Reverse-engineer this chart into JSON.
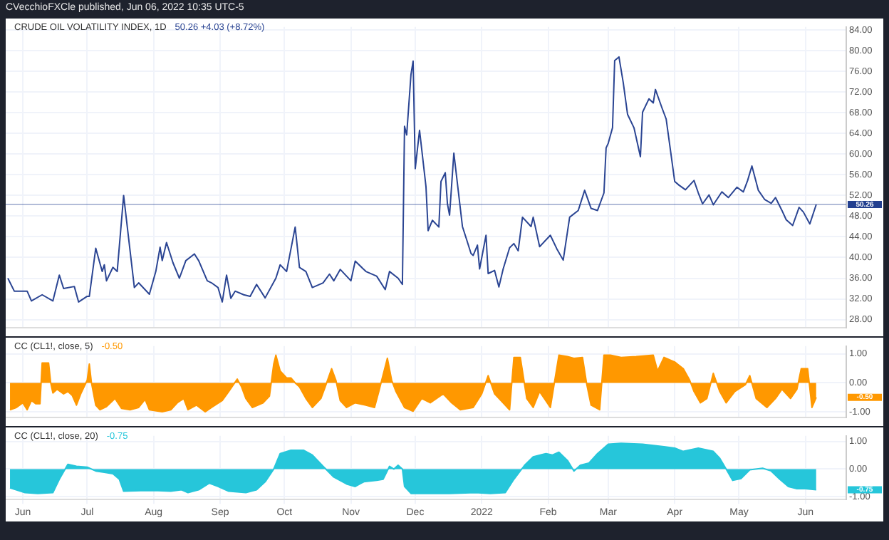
{
  "chart_data": [
    {
      "type": "line",
      "title": "CRUDE OIL VOLATILITY INDEX, 1D",
      "subtitle": "50.26 +4.03 (+8.72%)",
      "annotations": [
        "CVecchioFXCle published, Jun 06, 2022 10:35 UTC-5"
      ],
      "series": [
        {
          "color": "#2b4593",
          "x": [
            "2021-05-25",
            "2021-05-28",
            "2021-06-03",
            "2021-06-05",
            "2021-06-10",
            "2021-06-15",
            "2021-06-18",
            "2021-06-20",
            "2021-06-25",
            "2021-06-27",
            "2021-07-01",
            "2021-07-02",
            "2021-07-05",
            "2021-07-08",
            "2021-07-09",
            "2021-07-10",
            "2021-07-13",
            "2021-07-15",
            "2021-07-18",
            "2021-07-23",
            "2021-07-25",
            "2021-07-30",
            "2021-08-02",
            "2021-08-04",
            "2021-08-05",
            "2021-08-07",
            "2021-08-10",
            "2021-08-13",
            "2021-08-16",
            "2021-08-20",
            "2021-08-22",
            "2021-08-26",
            "2021-08-28",
            "2021-08-31",
            "2021-09-02",
            "2021-09-04",
            "2021-09-06",
            "2021-09-08",
            "2021-09-12",
            "2021-09-15",
            "2021-09-18",
            "2021-09-22",
            "2021-09-27",
            "2021-09-29",
            "2021-10-02",
            "2021-10-06",
            "2021-10-08",
            "2021-10-11",
            "2021-10-14",
            "2021-10-19",
            "2021-10-22",
            "2021-10-24",
            "2021-10-27",
            "2021-11-01",
            "2021-11-03",
            "2021-11-08",
            "2021-11-13",
            "2021-11-17",
            "2021-11-19",
            "2021-11-23",
            "2021-11-25",
            "2021-11-26",
            "2021-11-27",
            "2021-11-29",
            "2021-11-30",
            "2021-12-01",
            "2021-12-03",
            "2021-12-06",
            "2021-12-07",
            "2021-12-09",
            "2021-12-12",
            "2021-12-13",
            "2021-12-15",
            "2021-12-16",
            "2021-12-17",
            "2021-12-19",
            "2021-12-23",
            "2021-12-25",
            "2021-12-27",
            "2021-12-28",
            "2021-12-30",
            "2021-12-31",
            "2022-01-03",
            "2022-01-04",
            "2022-01-07",
            "2022-01-09",
            "2022-01-11",
            "2022-01-14",
            "2022-01-16",
            "2022-01-18",
            "2022-01-20",
            "2022-01-24",
            "2022-01-25",
            "2022-01-28",
            "2022-02-02",
            "2022-02-05",
            "2022-02-08",
            "2022-02-11",
            "2022-02-15",
            "2022-02-18",
            "2022-02-21",
            "2022-02-24",
            "2022-02-27",
            "2022-02-28",
            "2022-03-01",
            "2022-03-03",
            "2022-03-04",
            "2022-03-06",
            "2022-03-08",
            "2022-03-10",
            "2022-03-13",
            "2022-03-16",
            "2022-03-17",
            "2022-03-20",
            "2022-03-22",
            "2022-03-23",
            "2022-03-26",
            "2022-03-28",
            "2022-03-30",
            "2022-04-01",
            "2022-04-03",
            "2022-04-06",
            "2022-04-10",
            "2022-04-12",
            "2022-04-14",
            "2022-04-17",
            "2022-04-19",
            "2022-04-23",
            "2022-04-26",
            "2022-04-30",
            "2022-05-03",
            "2022-05-05",
            "2022-05-07",
            "2022-05-10",
            "2022-05-13",
            "2022-05-16",
            "2022-05-18",
            "2022-05-21",
            "2022-05-23",
            "2022-05-26",
            "2022-05-29",
            "2022-05-31",
            "2022-06-03",
            "2022-06-06"
          ],
          "values": [
            36.0,
            33.5,
            33.5,
            31.6,
            32.8,
            31.6,
            36.6,
            34.0,
            34.4,
            31.4,
            32.5,
            32.5,
            41.8,
            37.3,
            38.6,
            35.5,
            38.1,
            37.3,
            52.0,
            34.2,
            35.1,
            32.9,
            37.3,
            42.0,
            39.4,
            42.9,
            39.0,
            36.0,
            39.4,
            40.7,
            39.4,
            35.5,
            35.1,
            34.2,
            31.4,
            36.6,
            32.1,
            33.5,
            32.8,
            32.5,
            34.8,
            32.2,
            36.0,
            38.6,
            37.3,
            45.9,
            38.1,
            37.3,
            34.2,
            35.1,
            36.8,
            35.5,
            37.7,
            35.5,
            39.3,
            37.3,
            36.4,
            33.8,
            37.3,
            36.0,
            34.8,
            65.4,
            63.7,
            75.4,
            78.0,
            57.2,
            64.6,
            53.7,
            45.2,
            47.2,
            45.9,
            54.7,
            56.4,
            50.4,
            48.2,
            60.2,
            46.0,
            43.4,
            40.8,
            40.4,
            42.4,
            37.8,
            44.3,
            36.9,
            37.5,
            34.3,
            37.8,
            41.9,
            42.7,
            41.3,
            47.8,
            46.0,
            47.8,
            42.1,
            44.3,
            41.7,
            39.5,
            47.8,
            49.1,
            53.0,
            49.5,
            49.1,
            52.5,
            61.2,
            62.1,
            65.1,
            78.1,
            78.8,
            73.8,
            67.7,
            65.1,
            59.5,
            68.1,
            70.7,
            69.9,
            72.5,
            69.0,
            66.8,
            60.8,
            54.7,
            54.0,
            53.1,
            54.9,
            52.5,
            50.4,
            52.1,
            50.2,
            52.7,
            51.6,
            53.6,
            52.7,
            54.9,
            57.7,
            53.0,
            51.2,
            50.5,
            51.6,
            49.1,
            47.3,
            46.2,
            49.7,
            48.8,
            46.5,
            50.26
          ]
        }
      ],
      "ref_lines": [
        {
          "axis": "y",
          "value": 50.26,
          "label": "50.26",
          "color": "#223f8f"
        }
      ],
      "xlim": [
        "2021-05-24",
        "2022-06-20"
      ],
      "xticks": [
        {
          "value": "2021-06-01",
          "label": null
        },
        {
          "value": "2021-07-01",
          "label": null
        },
        {
          "value": "2021-08-01",
          "label": null
        },
        {
          "value": "2021-09-01",
          "label": null
        },
        {
          "value": "2021-10-01",
          "label": null
        },
        {
          "value": "2021-11-01",
          "label": null
        },
        {
          "value": "2021-12-01",
          "label": null
        },
        {
          "value": "2022-01-01",
          "label": null
        },
        {
          "value": "2022-02-01",
          "label": null
        },
        {
          "value": "2022-03-01",
          "label": null
        },
        {
          "value": "2022-04-01",
          "label": null
        },
        {
          "value": "2022-05-01",
          "label": null
        },
        {
          "value": "2022-06-01",
          "label": null
        }
      ],
      "ylim": [
        26.4,
        84.6
      ],
      "yticks": [
        {
          "value": 28,
          "label": "28.00"
        },
        {
          "value": 32,
          "label": "32.00"
        },
        {
          "value": 36,
          "label": "36.00"
        },
        {
          "value": 40,
          "label": "40.00"
        },
        {
          "value": 44,
          "label": "44.00"
        },
        {
          "value": 48,
          "label": "48.00"
        },
        {
          "value": 52,
          "label": "52.00"
        },
        {
          "value": 56,
          "label": "56.00"
        },
        {
          "value": 60,
          "label": "60.00"
        },
        {
          "value": 64,
          "label": "64.00"
        },
        {
          "value": 68,
          "label": "68.00"
        },
        {
          "value": 72,
          "label": "72.00"
        },
        {
          "value": 76,
          "label": "76.00"
        },
        {
          "value": 80,
          "label": "80.00"
        },
        {
          "value": 84,
          "label": "84.00"
        }
      ],
      "grid": true,
      "tick_labels": "y"
    },
    {
      "type": "area",
      "title": "CC (CL1!, close, 5)",
      "subtitle": "-0.50",
      "annotations": [
        "-0.50"
      ],
      "series": [
        {
          "color": "#ff9800",
          "x": [
            "2021-05-26",
            "2021-05-29",
            "2021-06-01",
            "2021-06-03",
            "2021-06-05",
            "2021-06-07",
            "2021-06-09",
            "2021-06-10",
            "2021-06-13",
            "2021-06-14",
            "2021-06-15",
            "2021-06-17",
            "2021-06-20",
            "2021-06-22",
            "2021-06-24",
            "2021-06-26",
            "2021-06-28",
            "2021-07-01",
            "2021-07-02",
            "2021-07-03",
            "2021-07-05",
            "2021-07-07",
            "2021-07-10",
            "2021-07-14",
            "2021-07-17",
            "2021-07-21",
            "2021-07-25",
            "2021-07-28",
            "2021-07-30",
            "2021-08-05",
            "2021-08-09",
            "2021-08-12",
            "2021-08-15",
            "2021-08-17",
            "2021-08-21",
            "2021-08-25",
            "2021-08-28",
            "2021-09-02",
            "2021-09-05",
            "2021-09-09",
            "2021-09-11",
            "2021-09-13",
            "2021-09-16",
            "2021-09-21",
            "2021-09-24",
            "2021-09-26",
            "2021-09-27",
            "2021-09-29",
            "2021-10-02",
            "2021-10-04",
            "2021-10-06",
            "2021-10-08",
            "2021-10-11",
            "2021-10-14",
            "2021-10-18",
            "2021-10-20",
            "2021-10-23",
            "2021-10-25",
            "2021-10-27",
            "2021-10-30",
            "2021-11-03",
            "2021-11-08",
            "2021-11-12",
            "2021-11-14",
            "2021-11-18",
            "2021-11-20",
            "2021-11-22",
            "2021-11-26",
            "2021-11-30",
            "2021-12-04",
            "2021-12-08",
            "2021-12-14",
            "2021-12-18",
            "2021-12-22",
            "2021-12-28",
            "2022-01-01",
            "2022-01-04",
            "2022-01-07",
            "2022-01-11",
            "2022-01-14",
            "2022-01-16",
            "2022-01-19",
            "2022-01-22",
            "2022-01-25",
            "2022-01-28",
            "2022-02-02",
            "2022-02-06",
            "2022-02-10",
            "2022-02-13",
            "2022-02-17",
            "2022-02-19",
            "2022-02-21",
            "2022-02-25",
            "2022-02-27",
            "2022-03-02",
            "2022-03-07",
            "2022-03-14",
            "2022-03-22",
            "2022-03-24",
            "2022-03-27",
            "2022-04-01",
            "2022-04-05",
            "2022-04-08",
            "2022-04-10",
            "2022-04-13",
            "2022-04-16",
            "2022-04-19",
            "2022-04-22",
            "2022-04-25",
            "2022-04-29",
            "2022-05-04",
            "2022-05-06",
            "2022-05-09",
            "2022-05-14",
            "2022-05-18",
            "2022-05-21",
            "2022-05-25",
            "2022-05-28",
            "2022-05-30",
            "2022-06-02",
            "2022-06-04",
            "2022-06-06"
          ],
          "values": [
            -0.93,
            -0.85,
            -0.69,
            -0.93,
            -0.61,
            -0.72,
            -0.72,
            0.69,
            0.69,
            0,
            -0.35,
            -0.22,
            -0.38,
            -0.3,
            -0.43,
            -0.77,
            -0.38,
            0.09,
            0.65,
            0,
            -0.77,
            -0.93,
            -0.82,
            -0.54,
            -0.88,
            -0.93,
            -0.85,
            -0.57,
            -0.93,
            -1.0,
            -0.93,
            -0.69,
            -0.54,
            -0.93,
            -0.77,
            -1.0,
            -0.85,
            -0.61,
            -0.3,
            0.13,
            -0.14,
            -0.54,
            -0.85,
            -0.69,
            -0.46,
            0.65,
            0.96,
            0.41,
            0.17,
            0.17,
            0,
            -0.14,
            -0.54,
            -0.85,
            -0.54,
            -0.14,
            0.49,
            0.09,
            -0.61,
            -0.85,
            -0.69,
            -0.77,
            -0.85,
            -0.3,
            0.85,
            0.09,
            -0.3,
            -0.85,
            -0.98,
            -0.54,
            -0.69,
            -0.38,
            -0.69,
            -0.93,
            -0.85,
            -0.38,
            0.25,
            -0.38,
            -0.69,
            -0.93,
            0.88,
            0.88,
            -0.54,
            -0.85,
            -0.3,
            -0.85,
            0.96,
            0.91,
            0.85,
            0.88,
            -0.06,
            -0.77,
            -0.93,
            0.96,
            0.96,
            0.88,
            0.91,
            0.96,
            0.41,
            0.88,
            0.72,
            0.49,
            0.09,
            -0.3,
            -0.69,
            -0.54,
            0.33,
            -0.3,
            -0.69,
            -0.3,
            -0.06,
            0.25,
            -0.54,
            -0.85,
            -0.54,
            -0.22,
            -0.54,
            -0.22,
            0.49,
            0.49,
            -0.85,
            -0.5
          ]
        }
      ],
      "xlim": [
        "2021-05-24",
        "2022-06-20"
      ],
      "xticks": [
        {
          "value": "2021-06-01",
          "label": null
        },
        {
          "value": "2021-07-01",
          "label": null
        },
        {
          "value": "2021-08-01",
          "label": null
        },
        {
          "value": "2021-09-01",
          "label": null
        },
        {
          "value": "2021-10-01",
          "label": null
        },
        {
          "value": "2021-11-01",
          "label": null
        },
        {
          "value": "2021-12-01",
          "label": null
        },
        {
          "value": "2022-01-01",
          "label": null
        },
        {
          "value": "2022-02-01",
          "label": null
        },
        {
          "value": "2022-03-01",
          "label": null
        },
        {
          "value": "2022-04-01",
          "label": null
        },
        {
          "value": "2022-05-01",
          "label": null
        },
        {
          "value": "2022-06-01",
          "label": null
        }
      ],
      "ylim": [
        -1.2,
        1.27
      ],
      "yticks": [
        {
          "value": -1,
          "label": "-1.00"
        },
        {
          "value": 0,
          "label": "0.00"
        },
        {
          "value": 1,
          "label": "1.00"
        }
      ],
      "grid": true,
      "tick_labels": "y"
    },
    {
      "type": "area",
      "title": "CC (CL1!, close, 20)",
      "subtitle": "-0.75",
      "annotations": [
        "-0.75"
      ],
      "series": [
        {
          "color": "#26c6da",
          "x": [
            "2021-05-26",
            "2021-06-02",
            "2021-06-08",
            "2021-06-15",
            "2021-06-18",
            "2021-06-22",
            "2021-06-26",
            "2021-07-01",
            "2021-07-05",
            "2021-07-09",
            "2021-07-13",
            "2021-07-16",
            "2021-07-18",
            "2021-07-26",
            "2021-08-03",
            "2021-08-09",
            "2021-08-14",
            "2021-08-17",
            "2021-08-22",
            "2021-08-27",
            "2021-08-31",
            "2021-09-05",
            "2021-09-13",
            "2021-09-18",
            "2021-09-22",
            "2021-09-26",
            "2021-09-29",
            "2021-10-04",
            "2021-10-10",
            "2021-10-14",
            "2021-10-19",
            "2021-10-24",
            "2021-10-30",
            "2021-11-03",
            "2021-11-07",
            "2021-11-13",
            "2021-11-16",
            "2021-11-19",
            "2021-11-21",
            "2021-11-23",
            "2021-11-25",
            "2021-11-26",
            "2021-11-29",
            "2021-12-07",
            "2021-12-17",
            "2021-12-29",
            "2022-01-05",
            "2022-01-12",
            "2022-01-16",
            "2022-01-21",
            "2022-01-25",
            "2022-01-31",
            "2022-02-03",
            "2022-02-06",
            "2022-02-10",
            "2022-02-13",
            "2022-02-16",
            "2022-02-20",
            "2022-02-24",
            "2022-03-01",
            "2022-03-07",
            "2022-03-17",
            "2022-03-27",
            "2022-04-01",
            "2022-04-05",
            "2022-04-12",
            "2022-04-19",
            "2022-04-22",
            "2022-04-25",
            "2022-04-28",
            "2022-05-02",
            "2022-05-06",
            "2022-05-12",
            "2022-05-16",
            "2022-05-20",
            "2022-05-24",
            "2022-05-28",
            "2022-06-01",
            "2022-06-06"
          ],
          "values": [
            -0.68,
            -0.85,
            -0.88,
            -0.85,
            -0.37,
            0.17,
            0.1,
            0.07,
            -0.07,
            -0.12,
            -0.17,
            -0.37,
            -0.8,
            -0.78,
            -0.78,
            -0.8,
            -0.75,
            -0.85,
            -0.75,
            -0.51,
            -0.63,
            -0.8,
            -0.85,
            -0.75,
            -0.46,
            0,
            0.56,
            0.68,
            0.68,
            0.51,
            0.1,
            -0.29,
            -0.54,
            -0.63,
            -0.46,
            -0.41,
            -0.37,
            0.1,
            0,
            0.14,
            0,
            -0.63,
            -0.88,
            -0.88,
            -0.88,
            -0.85,
            -0.88,
            -0.85,
            -0.37,
            0.14,
            0.44,
            0.56,
            0.51,
            0.61,
            0.31,
            -0.07,
            0.14,
            0.22,
            0.56,
            0.9,
            0.93,
            0.9,
            0.81,
            0.76,
            0.64,
            0.76,
            0.64,
            0.39,
            0,
            -0.41,
            -0.34,
            -0.03,
            0.03,
            -0.07,
            -0.37,
            -0.63,
            -0.71,
            -0.71,
            -0.75
          ]
        }
      ],
      "xlim": [
        "2021-05-24",
        "2022-06-20"
      ],
      "xticks": [
        {
          "value": "2021-06-01",
          "label": "Jun"
        },
        {
          "value": "2021-07-01",
          "label": "Jul"
        },
        {
          "value": "2021-08-01",
          "label": "Aug"
        },
        {
          "value": "2021-09-01",
          "label": "Sep"
        },
        {
          "value": "2021-10-01",
          "label": "Oct"
        },
        {
          "value": "2021-11-01",
          "label": "Nov"
        },
        {
          "value": "2021-12-01",
          "label": "Dec"
        },
        {
          "value": "2022-01-01",
          "label": "2022"
        },
        {
          "value": "2022-02-01",
          "label": "Feb"
        },
        {
          "value": "2022-03-01",
          "label": "Mar"
        },
        {
          "value": "2022-04-01",
          "label": "Apr"
        },
        {
          "value": "2022-05-01",
          "label": "May"
        },
        {
          "value": "2022-06-01",
          "label": "Jun"
        }
      ],
      "ylim": [
        -1.1,
        1.2
      ],
      "yticks": [
        {
          "value": -1,
          "label": "-1.00"
        },
        {
          "value": 0,
          "label": "0.00"
        },
        {
          "value": 1,
          "label": "1.00"
        }
      ],
      "grid": true
    }
  ]
}
